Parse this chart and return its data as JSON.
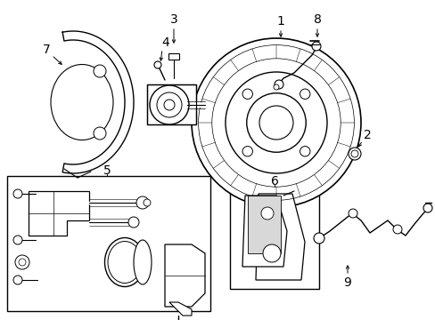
{
  "bg_color": "#ffffff",
  "fig_width": 4.89,
  "fig_height": 3.6,
  "dpi": 100
}
